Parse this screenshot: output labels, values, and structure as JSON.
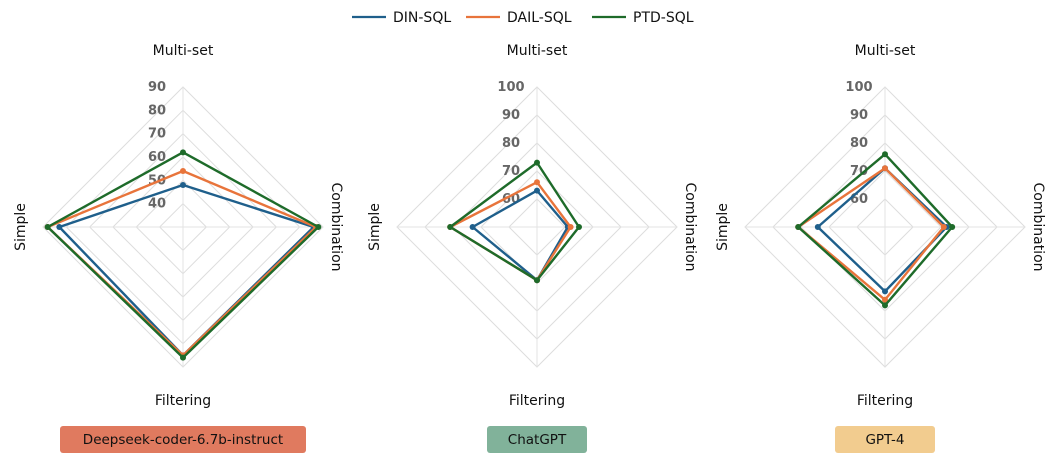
{
  "legend": [
    {
      "name": "DIN-SQL",
      "color": "#1f5f8b"
    },
    {
      "name": "DAIL-SQL",
      "color": "#e8743b"
    },
    {
      "name": "PTD-SQL",
      "color": "#1e6b2a"
    }
  ],
  "chart_data": [
    {
      "type": "radar",
      "title": "Deepseek-coder-6.7b-instruct",
      "title_color": "#e07a5f",
      "axes": [
        "Multi-set",
        "Combination",
        "Filtering",
        "Simple"
      ],
      "rmin": 30,
      "rmax": 90,
      "ticks": [
        40,
        50,
        60,
        70,
        80,
        90
      ],
      "series": [
        {
          "name": "DIN-SQL",
          "values": [
            48,
            86,
            85,
            83
          ]
        },
        {
          "name": "DAIL-SQL",
          "values": [
            54,
            87,
            85,
            88
          ]
        },
        {
          "name": "PTD-SQL",
          "values": [
            62,
            88,
            86,
            88
          ]
        }
      ]
    },
    {
      "type": "radar",
      "title": "ChatGPT",
      "title_color": "#81b29a",
      "axes": [
        "Multi-set",
        "Combination",
        "Filtering",
        "Simple"
      ],
      "rmin": 50,
      "rmax": 100,
      "ticks": [
        60,
        70,
        80,
        90,
        100
      ],
      "series": [
        {
          "name": "DIN-SQL",
          "values": [
            63,
            61,
            69,
            73
          ]
        },
        {
          "name": "DAIL-SQL",
          "values": [
            66,
            62,
            69,
            81
          ]
        },
        {
          "name": "PTD-SQL",
          "values": [
            73,
            65,
            69,
            81
          ]
        }
      ]
    },
    {
      "type": "radar",
      "title": "GPT-4",
      "title_color": "#f2cc8f",
      "axes": [
        "Multi-set",
        "Combination",
        "Filtering",
        "Simple"
      ],
      "rmin": 50,
      "rmax": 100,
      "ticks": [
        60,
        70,
        80,
        90,
        100
      ],
      "series": [
        {
          "name": "DIN-SQL",
          "values": [
            71,
            72,
            73,
            74
          ]
        },
        {
          "name": "DAIL-SQL",
          "values": [
            71,
            71,
            76,
            81
          ]
        },
        {
          "name": "PTD-SQL",
          "values": [
            76,
            74,
            78,
            81
          ]
        }
      ]
    }
  ]
}
